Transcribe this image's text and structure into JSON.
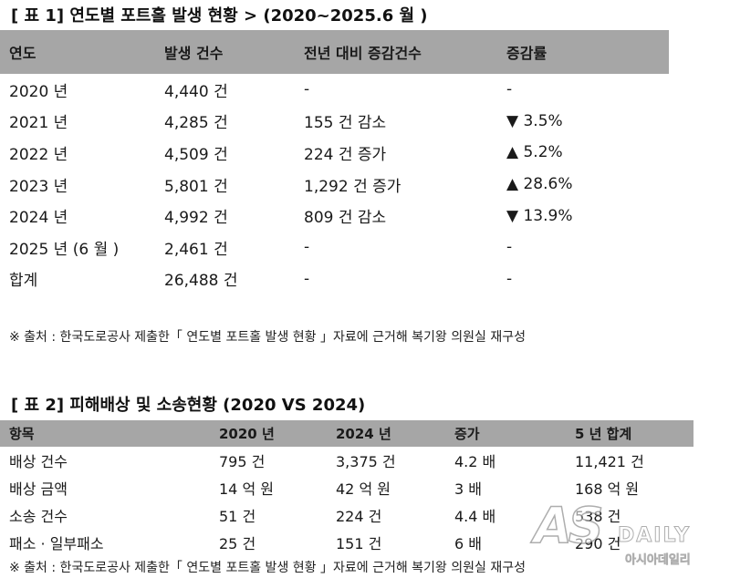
{
  "table1": {
    "title": "[ 표 1] 연도별 포트홀 발생 현황 > (2020~2025.6 월 )",
    "headers": [
      "연도",
      "발생 건수",
      "전년 대비 증감건수",
      "증감률"
    ],
    "rows": [
      [
        "2020 년",
        "4,440 건",
        "-",
        "-"
      ],
      [
        "2021 년",
        "4,285 건",
        "155 건 감소",
        "▼ 3.5%"
      ],
      [
        "2022 년",
        "4,509 건",
        "224 건 증가",
        "▲ 5.2%"
      ],
      [
        "2023 년",
        "5,801 건",
        "1,292 건 증가",
        "▲ 28.6%"
      ],
      [
        "2024 년",
        "4,992 건",
        "809 건 감소",
        "▼ 13.9%"
      ],
      [
        "2025 년 (6 월 )",
        "2,461 건",
        "-",
        "-"
      ],
      [
        "합계",
        "26,488 건",
        "-",
        "-"
      ]
    ],
    "source": "※ 출처 : 한국도로공사 제출한「 연도별 포트홀 발생 현황 」자료에 근거해 복기왕 의원실 재구성"
  },
  "table2": {
    "title": "[ 표 2] 피해배상 및 소송현황 (2020 VS 2024)",
    "headers": [
      "항목",
      "2020 년",
      "2024 년",
      "증가",
      "5 년 합계"
    ],
    "rows": [
      [
        "배상 건수",
        "795 건",
        "3,375 건",
        "4.2 배",
        "11,421 건"
      ],
      [
        "배상 금액",
        "14 억 원",
        "42 억 원",
        "3 배",
        "168 억 원"
      ],
      [
        "소송 건수",
        "51 건",
        "224 건",
        "4.4 배",
        "538 건"
      ],
      [
        "패소 · 일부패소",
        "25 건",
        "151 건",
        "6 배",
        "290 건"
      ]
    ],
    "source": "※ 출처 : 한국도로공사 제출한「 연도별 포트홀 발생 현황 」자료에 근거해 복기왕 의원실 재구성"
  },
  "watermark": {
    "logo": "AS",
    "brand": "DAILY",
    "tagline": "아시아데일리"
  }
}
